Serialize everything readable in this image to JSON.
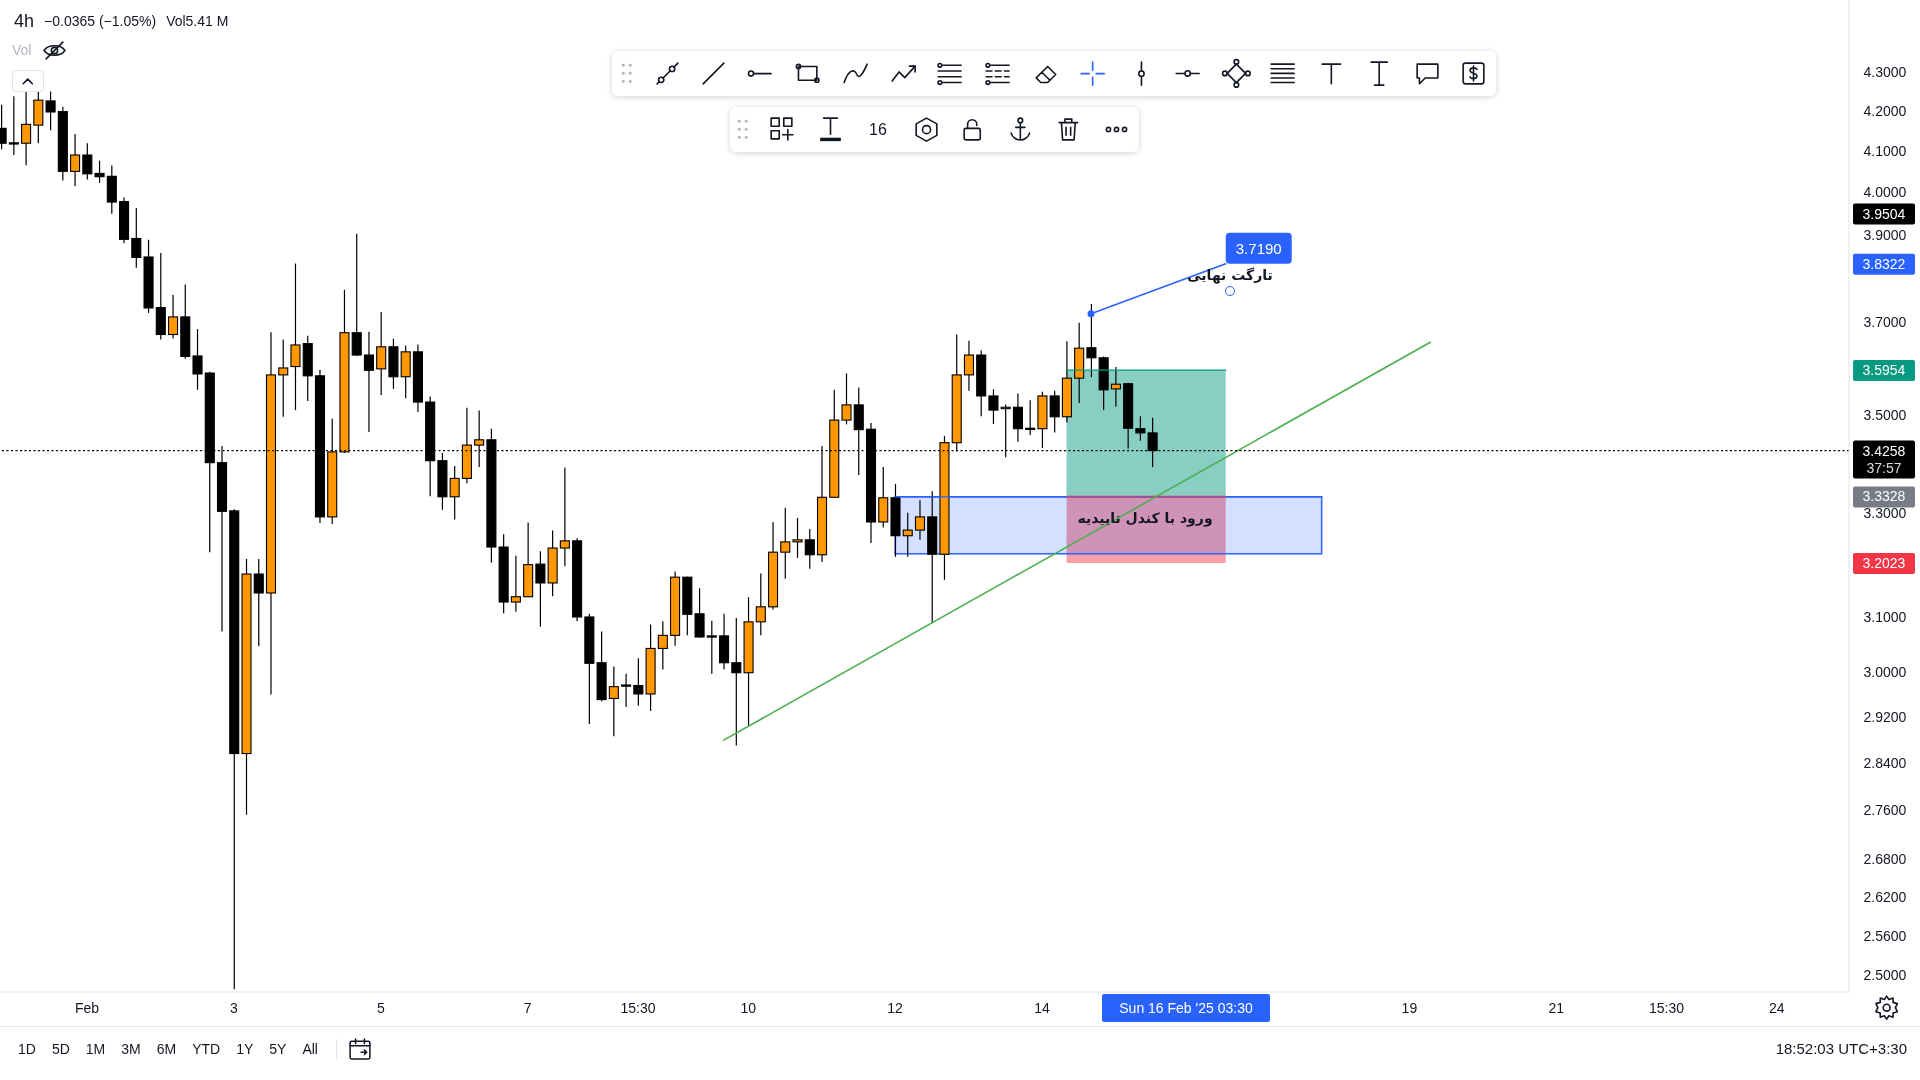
{
  "chart_data": {
    "type": "candlestick",
    "title": "4h",
    "series": [
      {
        "x": [
          "2025-01-30T23:30",
          "2025-01-31T03:30",
          "2025-01-31T07:30",
          "2025-01-31T11:30",
          "2025-01-31T15:30",
          "2025-01-31T19:30",
          "2025-01-31T23:30",
          "2025-02-01T03:30",
          "2025-02-01T07:30",
          "2025-02-01T11:30",
          "2025-02-01T15:30",
          "2025-02-01T19:30",
          "2025-02-01T23:30",
          "2025-02-02T03:30",
          "2025-02-02T07:30",
          "2025-02-02T11:30",
          "2025-02-02T15:30",
          "2025-02-02T19:30",
          "2025-02-02T23:30",
          "2025-02-03T03:30",
          "2025-02-03T07:30",
          "2025-02-03T11:30",
          "2025-02-03T15:30",
          "2025-02-03T19:30",
          "2025-02-03T23:30",
          "2025-02-04T03:30",
          "2025-02-04T07:30",
          "2025-02-04T11:30",
          "2025-02-04T15:30",
          "2025-02-04T19:30",
          "2025-02-04T23:30",
          "2025-02-05T03:30",
          "2025-02-05T07:30",
          "2025-02-05T11:30",
          "2025-02-05T15:30",
          "2025-02-05T19:30",
          "2025-02-05T23:30",
          "2025-02-06T03:30",
          "2025-02-06T07:30",
          "2025-02-06T11:30",
          "2025-02-06T15:30",
          "2025-02-06T19:30",
          "2025-02-06T23:30",
          "2025-02-07T03:30",
          "2025-02-07T07:30",
          "2025-02-07T11:30",
          "2025-02-07T15:30",
          "2025-02-07T19:30",
          "2025-02-07T23:30",
          "2025-02-08T03:30",
          "2025-02-08T07:30",
          "2025-02-08T11:30",
          "2025-02-08T15:30",
          "2025-02-08T19:30",
          "2025-02-08T23:30",
          "2025-02-09T03:30",
          "2025-02-09T07:30",
          "2025-02-09T11:30",
          "2025-02-09T15:30",
          "2025-02-09T19:30",
          "2025-02-09T23:30",
          "2025-02-10T03:30",
          "2025-02-10T07:30",
          "2025-02-10T11:30",
          "2025-02-10T15:30",
          "2025-02-10T19:30",
          "2025-02-10T23:30",
          "2025-02-11T03:30",
          "2025-02-11T07:30",
          "2025-02-11T11:30",
          "2025-02-11T15:30",
          "2025-02-11T19:30",
          "2025-02-11T23:30",
          "2025-02-12T03:30",
          "2025-02-12T07:30",
          "2025-02-12T11:30",
          "2025-02-12T15:30",
          "2025-02-12T19:30",
          "2025-02-12T23:30",
          "2025-02-13T03:30",
          "2025-02-13T07:30",
          "2025-02-13T11:30",
          "2025-02-13T15:30",
          "2025-02-13T19:30",
          "2025-02-13T23:30",
          "2025-02-14T03:30",
          "2025-02-14T07:30",
          "2025-02-14T11:30",
          "2025-02-14T15:30",
          "2025-02-14T19:30",
          "2025-02-14T23:30",
          "2025-02-15T03:30",
          "2025-02-15T07:30",
          "2025-02-15T11:30",
          "2025-02-15T15:30"
        ],
        "ohlc": [
          [
            4.157,
            4.216,
            4.105,
            4.12
          ],
          [
            4.121,
            4.238,
            4.091,
            4.12
          ],
          [
            4.12,
            4.25,
            4.066,
            4.167
          ],
          [
            4.165,
            4.25,
            4.12,
            4.228
          ],
          [
            4.226,
            4.25,
            4.152,
            4.198
          ],
          [
            4.199,
            4.211,
            4.029,
            4.051
          ],
          [
            4.051,
            4.143,
            4.015,
            4.091
          ],
          [
            4.091,
            4.12,
            4.031,
            4.045
          ],
          [
            4.046,
            4.077,
            4.023,
            4.038
          ],
          [
            4.039,
            4.065,
            3.949,
            3.977
          ],
          [
            3.978,
            3.988,
            3.88,
            3.889
          ],
          [
            3.891,
            3.963,
            3.823,
            3.847
          ],
          [
            3.848,
            3.888,
            3.721,
            3.732
          ],
          [
            3.733,
            3.857,
            3.662,
            3.673
          ],
          [
            3.673,
            3.761,
            3.664,
            3.712
          ],
          [
            3.712,
            3.785,
            3.62,
            3.625
          ],
          [
            3.626,
            3.685,
            3.553,
            3.587
          ],
          [
            3.589,
            3.592,
            3.223,
            3.401
          ],
          [
            3.401,
            3.435,
            3.073,
            3.303
          ],
          [
            3.304,
            3.307,
            2.479,
            2.856
          ],
          [
            2.856,
            3.21,
            2.753,
            3.181
          ],
          [
            3.181,
            3.21,
            3.046,
            3.145
          ],
          [
            3.145,
            3.678,
            2.959,
            3.585
          ],
          [
            3.585,
            3.662,
            3.496,
            3.6
          ],
          [
            3.603,
            3.833,
            3.51,
            3.65
          ],
          [
            3.653,
            3.67,
            3.529,
            3.583
          ],
          [
            3.583,
            3.596,
            3.28,
            3.292
          ],
          [
            3.292,
            3.492,
            3.278,
            3.423
          ],
          [
            3.423,
            3.773,
            3.421,
            3.677
          ],
          [
            3.677,
            3.902,
            3.626,
            3.628
          ],
          [
            3.628,
            3.679,
            3.464,
            3.595
          ],
          [
            3.598,
            3.723,
            3.542,
            3.646
          ],
          [
            3.646,
            3.664,
            3.555,
            3.581
          ],
          [
            3.581,
            3.649,
            3.535,
            3.635
          ],
          [
            3.635,
            3.651,
            3.506,
            3.527
          ],
          [
            3.527,
            3.539,
            3.333,
            3.405
          ],
          [
            3.405,
            3.421,
            3.306,
            3.332
          ],
          [
            3.332,
            3.394,
            3.287,
            3.369
          ],
          [
            3.369,
            3.515,
            3.359,
            3.437
          ],
          [
            3.437,
            3.509,
            3.392,
            3.448
          ],
          [
            3.448,
            3.471,
            3.203,
            3.233
          ],
          [
            3.233,
            3.258,
            3.107,
            3.128
          ],
          [
            3.128,
            3.216,
            3.11,
            3.138
          ],
          [
            3.138,
            3.281,
            3.137,
            3.199
          ],
          [
            3.2,
            3.225,
            3.082,
            3.164
          ],
          [
            3.164,
            3.265,
            3.139,
            3.231
          ],
          [
            3.231,
            3.391,
            3.196,
            3.245
          ],
          [
            3.245,
            3.25,
            3.092,
            3.1
          ],
          [
            3.1,
            3.106,
            2.907,
            3.015
          ],
          [
            3.016,
            3.073,
            2.947,
            2.95
          ],
          [
            2.952,
            3.009,
            2.886,
            2.973
          ],
          [
            2.976,
            2.996,
            2.937,
            2.975
          ],
          [
            2.975,
            3.024,
            2.939,
            2.96
          ],
          [
            2.96,
            3.086,
            2.93,
            3.042
          ],
          [
            3.042,
            3.092,
            3.004,
            3.066
          ],
          [
            3.066,
            3.186,
            3.047,
            3.175
          ],
          [
            3.175,
            3.176,
            3.066,
            3.105
          ],
          [
            3.106,
            3.154,
            3.062,
            3.063
          ],
          [
            3.065,
            3.093,
            2.996,
            3.064
          ],
          [
            3.065,
            3.106,
            3.004,
            3.016
          ],
          [
            3.016,
            3.098,
            2.87,
            2.998
          ],
          [
            2.998,
            3.137,
            2.904,
            3.091
          ],
          [
            3.091,
            3.182,
            3.066,
            3.119
          ],
          [
            3.119,
            3.282,
            3.114,
            3.223
          ],
          [
            3.223,
            3.31,
            3.172,
            3.243
          ],
          [
            3.243,
            3.29,
            3.212,
            3.247
          ],
          [
            3.247,
            3.268,
            3.191,
            3.218
          ],
          [
            3.218,
            3.435,
            3.204,
            3.331
          ],
          [
            3.331,
            3.553,
            3.33,
            3.489
          ],
          [
            3.489,
            3.588,
            3.48,
            3.521
          ],
          [
            3.521,
            3.558,
            3.376,
            3.469
          ],
          [
            3.47,
            3.483,
            3.241,
            3.282
          ],
          [
            3.282,
            3.392,
            3.271,
            3.33
          ],
          [
            3.33,
            3.358,
            3.214,
            3.255
          ],
          [
            3.255,
            3.3,
            3.214,
            3.266
          ],
          [
            3.266,
            3.325,
            3.247,
            3.292
          ],
          [
            3.292,
            3.343,
            3.089,
            3.219
          ],
          [
            3.219,
            3.456,
            3.17,
            3.442
          ],
          [
            3.442,
            3.673,
            3.424,
            3.585
          ],
          [
            3.585,
            3.659,
            3.551,
            3.628
          ],
          [
            3.628,
            3.638,
            3.497,
            3.54
          ],
          [
            3.54,
            3.554,
            3.481,
            3.51
          ],
          [
            3.513,
            3.522,
            3.412,
            3.516
          ],
          [
            3.516,
            3.545,
            3.444,
            3.471
          ],
          [
            3.472,
            3.531,
            3.458,
            3.471
          ],
          [
            3.471,
            3.549,
            3.431,
            3.54
          ],
          [
            3.54,
            3.551,
            3.463,
            3.496
          ],
          [
            3.496,
            3.658,
            3.484,
            3.578
          ],
          [
            3.578,
            3.699,
            3.525,
            3.643
          ],
          [
            3.644,
            3.741,
            3.58,
            3.622
          ],
          [
            3.622,
            3.625,
            3.51,
            3.553
          ],
          [
            3.555,
            3.602,
            3.517,
            3.565
          ],
          [
            3.566,
            3.568,
            3.43,
            3.472
          ],
          [
            3.471,
            3.497,
            3.446,
            3.4623
          ],
          [
            3.4623,
            3.494,
            3.392,
            3.4258
          ]
        ],
        "colors": [
          "#000000",
          "#000000",
          "#ff9800",
          "#ff9800",
          "#000000",
          "#000000",
          "#ff9800",
          "#000000",
          "#000000",
          "#000000",
          "#000000",
          "#000000",
          "#000000",
          "#000000",
          "#ff9800",
          "#000000",
          "#000000",
          "#000000",
          "#000000",
          "#000000",
          "#ff9800",
          "#000000",
          "#ff9800",
          "#ff9800",
          "#ff9800",
          "#000000",
          "#000000",
          "#ff9800",
          "#ff9800",
          "#000000",
          "#000000",
          "#ff9800",
          "#000000",
          "#ff9800",
          "#000000",
          "#000000",
          "#000000",
          "#ff9800",
          "#ff9800",
          "#ff9800",
          "#000000",
          "#000000",
          "#ff9800",
          "#ff9800",
          "#000000",
          "#ff9800",
          "#ff9800",
          "#000000",
          "#000000",
          "#000000",
          "#ff9800",
          "#000000",
          "#000000",
          "#ff9800",
          "#ff9800",
          "#ff9800",
          "#000000",
          "#000000",
          "#000000",
          "#000000",
          "#000000",
          "#ff9800",
          "#ff9800",
          "#ff9800",
          "#ff9800",
          "#ff9800",
          "#000000",
          "#ff9800",
          "#ff9800",
          "#ff9800",
          "#000000",
          "#000000",
          "#ff9800",
          "#000000",
          "#ff9800",
          "#ff9800",
          "#000000",
          "#ff9800",
          "#ff9800",
          "#ff9800",
          "#000000",
          "#000000",
          "#ff9800",
          "#000000",
          "#000000",
          "#ff9800",
          "#000000",
          "#ff9800",
          "#ff9800",
          "#000000",
          "#000000",
          "#ff9800",
          "#000000",
          "#000000",
          "#000000"
        ]
      },
      {
        "type": "line",
        "color": "#2962ff",
        "line_style": "solid",
        "x": [
          "2025-02-12T03:30",
          "2025-02-17T22:50"
        ],
        "values": [
          3.332,
          3.332
        ],
        "lower": [
          3.22,
          3.22
        ],
        "upper": [
          3.332,
          3.332
        ]
      },
      {
        "type": "line",
        "color": "#089981",
        "x": [
          "2025-02-14T11:30",
          "2025-02-16T15:30"
        ],
        "values": [
          3.5954,
          3.5954
        ],
        "lower": [
          3.3328,
          3.3328
        ],
        "upper": [
          3.5954,
          3.5954
        ]
      },
      {
        "type": "line",
        "color": "#f23645",
        "x": [
          "2025-02-14T11:30",
          "2025-02-16T15:30"
        ],
        "values": [
          3.3328,
          3.3328
        ],
        "lower": [
          3.2023,
          3.2023
        ],
        "upper": [
          3.3328,
          3.3328
        ]
      },
      {
        "type": "line",
        "color": "#4caf50",
        "x": [
          "2025-02-09T19:30",
          "2025-02-19T10:20"
        ],
        "values": [
          2.879,
          3.656
        ]
      },
      {
        "type": "line",
        "color": "#2962ff",
        "x": [
          "2025-02-14T19:30",
          "2025-02-16T15:30"
        ],
        "values": [
          3.719,
          3.8322
        ]
      }
    ],
    "xlim": [
      "2025-01-30T23:06",
      "2025-02-25T03:06"
    ],
    "xticks": [
      {
        "value": "2025-02-01T03:30",
        "label": "Feb"
      },
      {
        "value": "2025-02-03T03:30",
        "label": "3"
      },
      {
        "value": "2025-02-05T03:30",
        "label": "5"
      },
      {
        "value": "2025-02-07T03:30",
        "label": "7"
      },
      {
        "value": "2025-02-08T15:30",
        "label": "15:30"
      },
      {
        "value": "2025-02-10T03:30",
        "label": "10"
      },
      {
        "value": "2025-02-12T03:30",
        "label": "12"
      },
      {
        "value": "2025-02-14T03:30",
        "label": "14"
      },
      {
        "value": "2025-02-19T03:30",
        "label": "19"
      },
      {
        "value": "2025-02-21T03:30",
        "label": "21"
      },
      {
        "value": "2025-02-22T15:30",
        "label": "15:30"
      },
      {
        "value": "2025-02-24T03:30",
        "label": "24"
      }
    ],
    "ylim": [
      2.475,
      4.49
    ],
    "yticks": [
      {
        "value": 2.5,
        "label": "2.5000"
      },
      {
        "value": 2.56,
        "label": "2.5600"
      },
      {
        "value": 2.62,
        "label": "2.6200"
      },
      {
        "value": 2.68,
        "label": "2.6800"
      },
      {
        "value": 2.76,
        "label": "2.7600"
      },
      {
        "value": 2.84,
        "label": "2.8400"
      },
      {
        "value": 2.92,
        "label": "2.9200"
      },
      {
        "value": 3,
        "label": "3.0000"
      },
      {
        "value": 3.1,
        "label": "3.1000"
      },
      {
        "value": 3.3,
        "label": "3.3000"
      },
      {
        "value": 3.5,
        "label": "3.5000"
      },
      {
        "value": 3.7,
        "label": "3.7000"
      },
      {
        "value": 3.9,
        "label": "3.9000"
      },
      {
        "value": 4,
        "label": "4.0000"
      },
      {
        "value": 4.1,
        "label": "4.1000"
      },
      {
        "value": 4.2,
        "label": "4.2000"
      },
      {
        "value": 4.3,
        "label": "4.3000"
      }
    ],
    "log": "y",
    "ref_lines": [
      {
        "axis": "y",
        "value": 3.4258,
        "label": "3.4258\n37:57",
        "color": "#000000",
        "line_style": "dotted"
      }
    ],
    "annotations": [
      "−0.0365 (−1.05%)",
      "Vol5.41 M",
      "Vol",
      "3.7190",
      "3.8322",
      "3.5954",
      "3.3328",
      "3.2023",
      "تارگت نهایی",
      "ورود با کندل تاییدیه",
      "3.9504",
      "Sun 16 Feb '25 03:30",
      "16",
      "1D",
      "5D",
      "1M",
      "3M",
      "6M",
      "YTD",
      "1Y",
      "5Y",
      "All",
      "18:52:03 UTC+3:30"
    ]
  }
}
